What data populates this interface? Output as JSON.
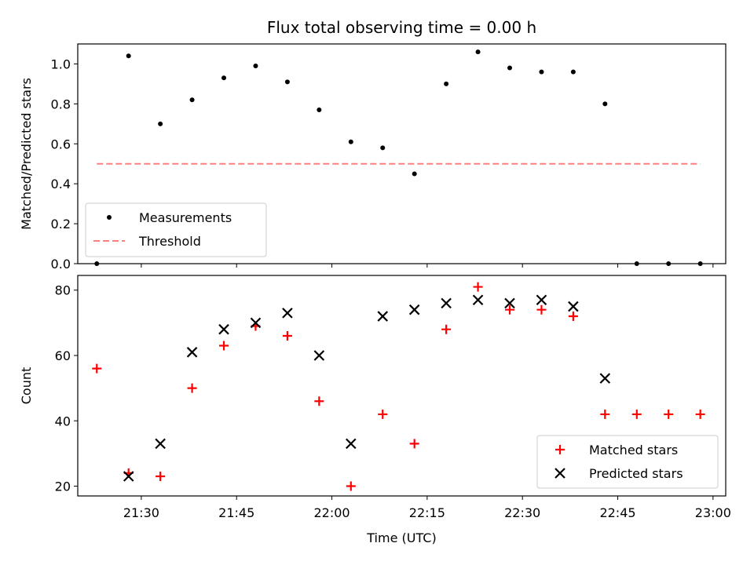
{
  "figure": {
    "title": "Flux total observing time = 0.00 h",
    "x_label": "Time (UTC)"
  },
  "chart_data": [
    {
      "type": "scatter",
      "panel": "top",
      "title": "Flux total observing time = 0.00 h",
      "ylabel": "Matched/Predicted stars",
      "ylim": [
        0,
        1.1
      ],
      "yticks": [
        "0.0",
        "0.2",
        "0.4",
        "0.6",
        "0.8",
        "1.0"
      ],
      "ytick_values": [
        0,
        0.2,
        0.4,
        0.6,
        0.8,
        1.0
      ],
      "xlim": [
        "21:20",
        "23:02"
      ],
      "x_tick_times": [
        "21:30",
        "21:45",
        "22:00",
        "22:15",
        "22:30",
        "22:45",
        "23:00"
      ],
      "grid": false,
      "legend_placement": "lower-left",
      "series": [
        {
          "name": "Measurements",
          "kind": "points",
          "color": "#000000",
          "x": [
            "21:23",
            "21:28",
            "21:33",
            "21:38",
            "21:43",
            "21:48",
            "21:53",
            "21:58",
            "22:03",
            "22:08",
            "22:13",
            "22:18",
            "22:23",
            "22:28",
            "22:33",
            "22:38",
            "22:43",
            "22:48",
            "22:53",
            "22:58"
          ],
          "y": [
            0.0,
            1.04,
            0.7,
            0.82,
            0.93,
            0.99,
            0.91,
            0.77,
            0.61,
            0.58,
            0.45,
            0.9,
            1.06,
            0.98,
            0.96,
            0.96,
            0.8,
            0.0,
            0.0,
            0.0
          ]
        },
        {
          "name": "Threshold",
          "kind": "dashed-line",
          "color": "#ff7f7f",
          "x": [
            "21:23",
            "22:58"
          ],
          "y": [
            0.5,
            0.5
          ]
        }
      ]
    },
    {
      "type": "scatter",
      "panel": "bottom",
      "xlabel": "Time (UTC)",
      "ylabel": "Count",
      "ylim": [
        17,
        84.5
      ],
      "yticks": [
        "20",
        "40",
        "60",
        "80"
      ],
      "ytick_values": [
        20,
        40,
        60,
        80
      ],
      "xlim": [
        "21:20",
        "23:02"
      ],
      "xticks": [
        "21:30",
        "21:45",
        "22:00",
        "22:15",
        "22:30",
        "22:45",
        "23:00"
      ],
      "grid": false,
      "legend_placement": "lower-right",
      "series": [
        {
          "name": "Matched stars",
          "marker": "plus",
          "color": "#ff0000",
          "x": [
            "21:23",
            "21:28",
            "21:33",
            "21:38",
            "21:43",
            "21:48",
            "21:53",
            "21:58",
            "22:03",
            "22:08",
            "22:13",
            "22:18",
            "22:23",
            "22:28",
            "22:33",
            "22:38",
            "22:43",
            "22:48",
            "22:53",
            "22:58"
          ],
          "y": [
            56,
            24,
            23,
            50,
            63,
            69,
            66,
            46,
            20,
            42,
            33,
            68,
            81,
            74,
            74,
            72,
            42,
            42,
            42,
            42
          ]
        },
        {
          "name": "Predicted stars",
          "marker": "x",
          "color": "#000000",
          "x": [
            "21:28",
            "21:33",
            "21:38",
            "21:43",
            "21:48",
            "21:53",
            "21:58",
            "22:03",
            "22:08",
            "22:13",
            "22:18",
            "22:23",
            "22:28",
            "22:33",
            "22:38",
            "22:43"
          ],
          "y": [
            23,
            33,
            61,
            68,
            70,
            73,
            60,
            33,
            72,
            74,
            76,
            77,
            76,
            77,
            75,
            53
          ]
        }
      ]
    }
  ]
}
